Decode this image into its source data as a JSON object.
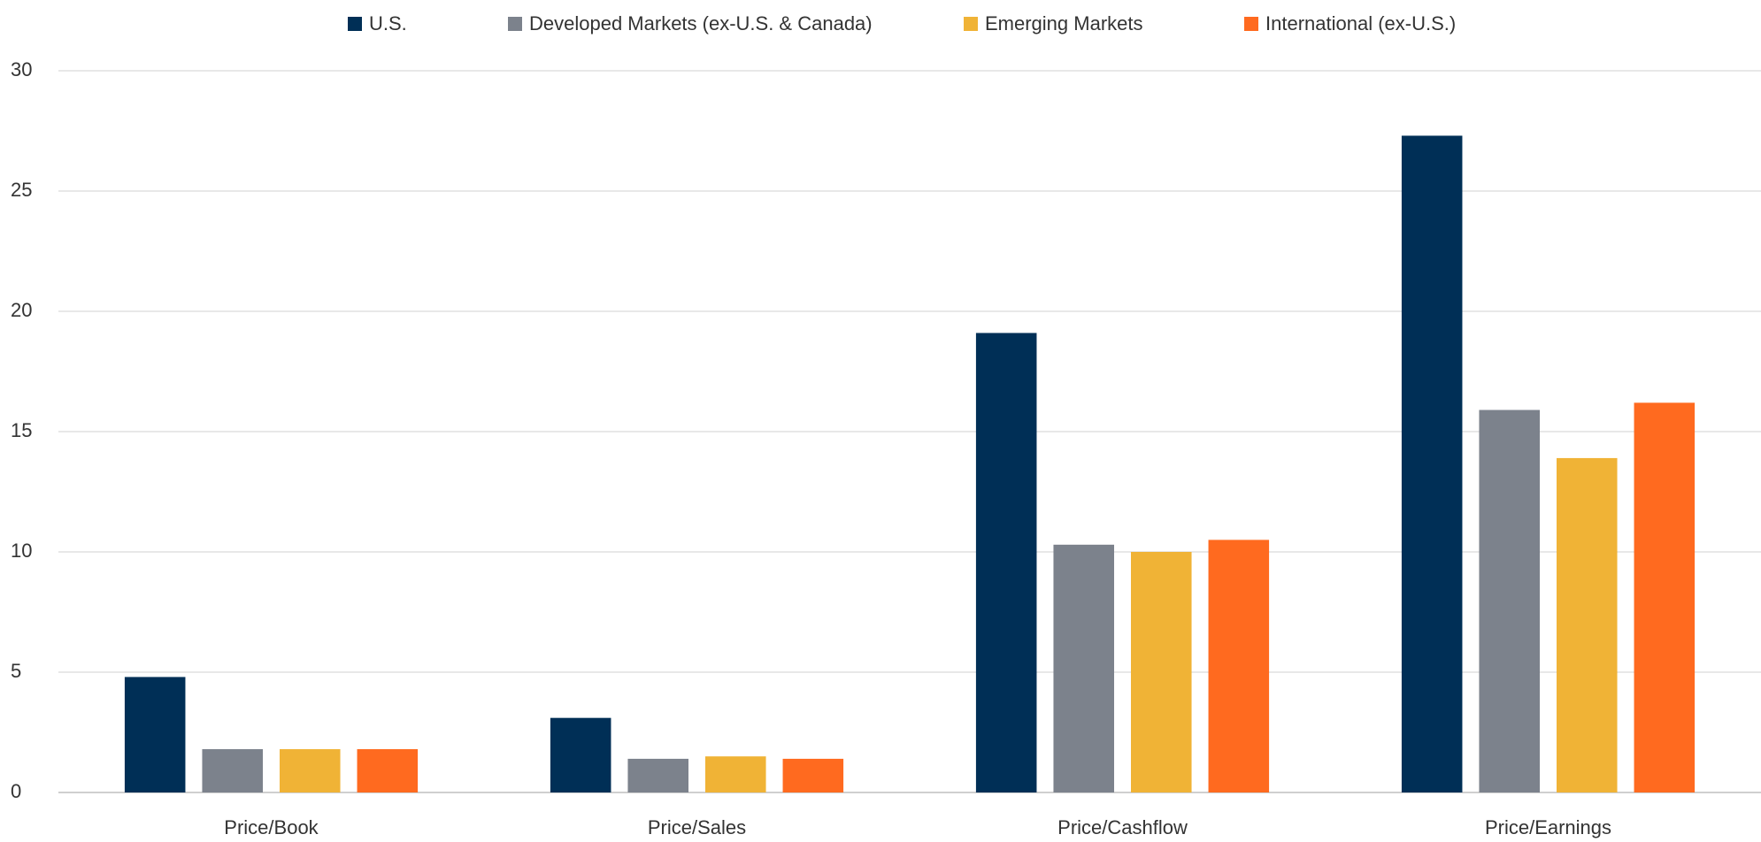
{
  "chart_data": {
    "type": "bar",
    "categories": [
      "Price/Book",
      "Price/Sales",
      "Price/Cashflow",
      "Price/Earnings"
    ],
    "series": [
      {
        "name": "U.S.",
        "color": "#002f56",
        "values": [
          4.8,
          3.1,
          19.1,
          27.3
        ]
      },
      {
        "name": "Developed Markets (ex-U.S. & Canada)",
        "color": "#7c828c",
        "values": [
          1.8,
          1.4,
          10.3,
          15.9
        ]
      },
      {
        "name": "Emerging Markets",
        "color": "#f0b336",
        "values": [
          1.8,
          1.5,
          10.0,
          13.9
        ]
      },
      {
        "name": "International (ex-U.S.)",
        "color": "#ff6a1f",
        "values": [
          1.8,
          1.4,
          10.5,
          16.2
        ]
      }
    ],
    "ylim": [
      0,
      30
    ],
    "yticks": [
      0,
      5,
      10,
      15,
      20,
      25,
      30
    ],
    "grid": true,
    "legend": "top"
  }
}
